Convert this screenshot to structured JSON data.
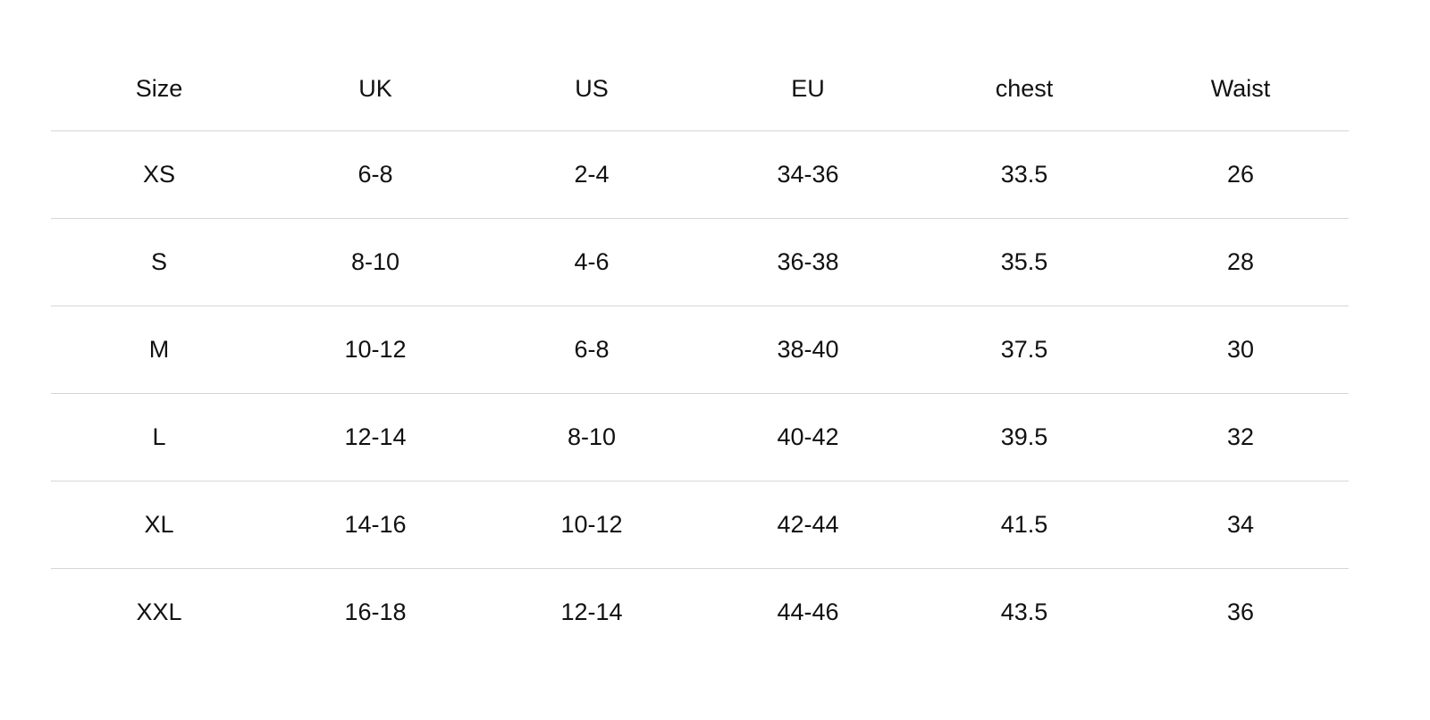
{
  "size_chart": {
    "headers": [
      "Size",
      "UK",
      "US",
      "EU",
      "chest",
      "Waist"
    ],
    "rows": [
      [
        "XS",
        "6-8",
        "2-4",
        "34-36",
        "33.5",
        "26"
      ],
      [
        "S",
        "8-10",
        "4-6",
        "36-38",
        "35.5",
        "28"
      ],
      [
        "M",
        "10-12",
        "6-8",
        "38-40",
        "37.5",
        "30"
      ],
      [
        "L",
        "12-14",
        "8-10",
        "40-42",
        "39.5",
        "32"
      ],
      [
        "XL",
        "14-16",
        "10-12",
        "42-44",
        "41.5",
        "34"
      ],
      [
        "XXL",
        "16-18",
        "12-14",
        "44-46",
        "43.5",
        "36"
      ]
    ],
    "colors": {
      "text": "#111111",
      "divider": "#d6d6d6",
      "background": "#ffffff"
    }
  }
}
